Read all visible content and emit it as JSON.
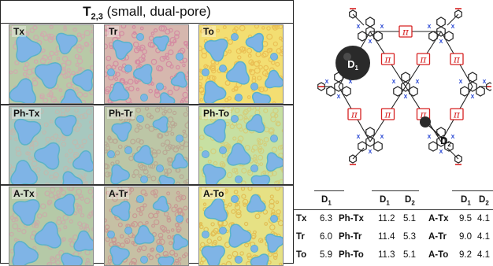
{
  "title": {
    "main": "T",
    "sub": "2,3",
    "rest": " (small, dual-pore)"
  },
  "rows": [
    {
      "cells": [
        {
          "label": "Tx",
          "bg": "#b8c9a7",
          "ring": "#d9a0b0",
          "style": "tx"
        },
        {
          "label": "Tr",
          "bg": "#d6b7ae",
          "ring": "#d47e9e",
          "style": "tr"
        },
        {
          "label": "To",
          "bg": "#f3de72",
          "ring": "#e8b74c",
          "style": "to"
        }
      ]
    },
    {
      "cells": [
        {
          "label": "Ph-Tx",
          "bg": "#a7c8bf",
          "ring": "#c7b6ab",
          "style": "tx"
        },
        {
          "label": "Ph-Tr",
          "bg": "#bcc6a6",
          "ring": "#b89f8f",
          "style": "tr"
        },
        {
          "label": "Ph-To",
          "bg": "#c7e0a2",
          "ring": "#d8c870",
          "style": "to"
        }
      ]
    },
    {
      "cells": [
        {
          "label": "A-Tx",
          "bg": "#b5c9a7",
          "ring": "#cfa4a9",
          "style": "tx"
        },
        {
          "label": "A-Tr",
          "bg": "#c6c0a4",
          "ring": "#c98d8e",
          "style": "tr"
        },
        {
          "label": "A-To",
          "bg": "#e6e184",
          "ring": "#e1b447",
          "style": "to"
        }
      ]
    }
  ],
  "colors": {
    "pore": "#7fb4e6",
    "pore_edge": "#5ab3c8",
    "link_red": "#d62020",
    "x_blue": "#1f3fd1"
  },
  "structure": {
    "pi_label": "π",
    "x_label": "X",
    "d1_label": "D",
    "d1_sub": "1",
    "d2_label": "D",
    "d2_sub": "2"
  },
  "table": {
    "groups": [
      {
        "headers": [
          {
            "t": "D",
            "s": "1"
          }
        ],
        "rows": [
          {
            "name": "Tx",
            "v": [
              "6.3"
            ]
          },
          {
            "name": "Tr",
            "v": [
              "6.0"
            ]
          },
          {
            "name": "To",
            "v": [
              "5.9"
            ]
          }
        ]
      },
      {
        "headers": [
          {
            "t": "D",
            "s": "1"
          },
          {
            "t": "D",
            "s": "2"
          }
        ],
        "rows": [
          {
            "name": "Ph-Tx",
            "v": [
              "11.2",
              "5.1"
            ]
          },
          {
            "name": "Ph-Tr",
            "v": [
              "11.4",
              "5.3"
            ]
          },
          {
            "name": "Ph-To",
            "v": [
              "11.3",
              "5.1"
            ]
          }
        ]
      },
      {
        "headers": [
          {
            "t": "D",
            "s": "1"
          },
          {
            "t": "D",
            "s": "2"
          }
        ],
        "rows": [
          {
            "name": "A-Tx",
            "v": [
              "9.5",
              "4.1"
            ]
          },
          {
            "name": "A-Tr",
            "v": [
              "9.0",
              "4.1"
            ]
          },
          {
            "name": "A-To",
            "v": [
              "9.2",
              "4.1"
            ]
          }
        ]
      }
    ]
  }
}
